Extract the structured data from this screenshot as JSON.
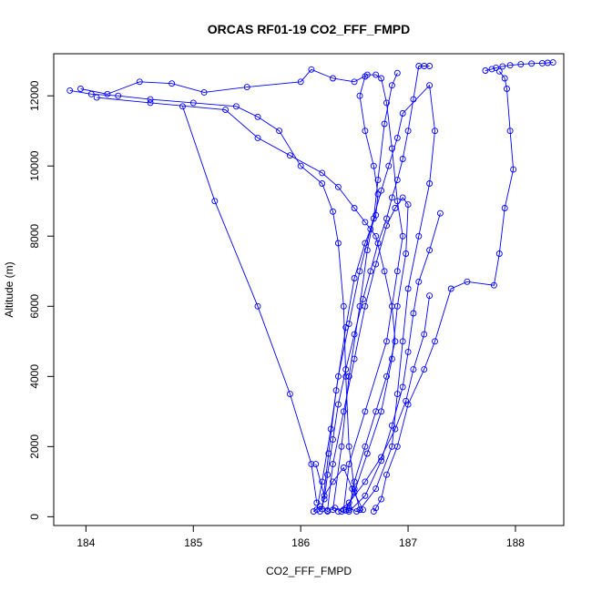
{
  "chart_data": {
    "type": "line",
    "title": "ORCAS RF01-19 CO2_FFF_FMPD",
    "xlabel": "CO2_FFF_FMPD",
    "ylabel": "Altitude (m)",
    "xlim": [
      183.7,
      188.45
    ],
    "ylim": [
      -250,
      13200
    ],
    "x_ticks": [
      184,
      185,
      186,
      187,
      188
    ],
    "y_ticks": [
      0,
      2000,
      4000,
      6000,
      8000,
      10000,
      12000
    ],
    "series_color": "#0000ff",
    "marker": "open-circle",
    "series": [
      {
        "values": [
          [
            186.18,
            150
          ],
          [
            186.22,
            500
          ],
          [
            186.25,
            1200
          ],
          [
            186.3,
            2200
          ],
          [
            186.35,
            3200
          ],
          [
            186.42,
            4200
          ],
          [
            186.5,
            5200
          ],
          [
            186.58,
            6200
          ],
          [
            186.65,
            7000
          ],
          [
            186.72,
            7800
          ],
          [
            186.8,
            8500
          ],
          [
            186.85,
            9100
          ],
          [
            186.9,
            9600
          ],
          [
            186.95,
            10200
          ],
          [
            187.0,
            11000
          ],
          [
            187.05,
            11900
          ],
          [
            187.1,
            12850
          ],
          [
            187.15,
            12850
          ],
          [
            187.2,
            12850
          ]
        ]
      },
      {
        "values": [
          [
            187.72,
            12720
          ],
          [
            187.78,
            12760
          ],
          [
            187.82,
            12800
          ],
          [
            187.88,
            12840
          ],
          [
            187.95,
            12870
          ],
          [
            188.05,
            12900
          ],
          [
            188.15,
            12920
          ],
          [
            188.25,
            12930
          ],
          [
            188.3,
            12940
          ],
          [
            188.35,
            12950
          ]
        ]
      },
      {
        "values": [
          [
            187.85,
            12700
          ],
          [
            187.9,
            12500
          ],
          [
            187.92,
            12200
          ],
          [
            187.95,
            11000
          ],
          [
            187.98,
            9900
          ],
          [
            187.9,
            8800
          ],
          [
            187.85,
            7500
          ],
          [
            187.8,
            6600
          ],
          [
            187.55,
            6700
          ],
          [
            187.4,
            6500
          ],
          [
            187.25,
            5000
          ],
          [
            187.15,
            4200
          ],
          [
            187.0,
            3200
          ],
          [
            186.9,
            2000
          ],
          [
            186.8,
            1200
          ],
          [
            186.75,
            500
          ],
          [
            186.7,
            250
          ],
          [
            186.68,
            150
          ]
        ]
      },
      {
        "values": [
          [
            183.85,
            12150
          ],
          [
            184.05,
            12050
          ],
          [
            184.3,
            12000
          ],
          [
            184.6,
            11900
          ],
          [
            185.0,
            11800
          ],
          [
            185.4,
            11700
          ],
          [
            185.6,
            11400
          ],
          [
            185.8,
            11000
          ],
          [
            186.0,
            10000
          ],
          [
            186.2,
            9500
          ],
          [
            186.3,
            8700
          ],
          [
            186.35,
            7800
          ],
          [
            186.4,
            6000
          ],
          [
            186.42,
            4000
          ],
          [
            186.45,
            2000
          ],
          [
            186.5,
            800
          ],
          [
            186.55,
            200
          ]
        ]
      },
      {
        "values": [
          [
            183.95,
            12200
          ],
          [
            184.2,
            12050
          ],
          [
            184.5,
            12400
          ],
          [
            184.8,
            12350
          ],
          [
            185.1,
            12100
          ],
          [
            185.5,
            12250
          ],
          [
            186.0,
            12400
          ],
          [
            186.1,
            12750
          ],
          [
            186.3,
            12500
          ],
          [
            186.5,
            12400
          ],
          [
            186.62,
            12600
          ],
          [
            186.7,
            12600
          ],
          [
            186.75,
            12500
          ],
          [
            186.8,
            11800
          ],
          [
            186.85,
            10500
          ],
          [
            186.9,
            9000
          ],
          [
            186.95,
            8000
          ],
          [
            186.9,
            7000
          ],
          [
            186.8,
            5000
          ],
          [
            186.6,
            3000
          ],
          [
            186.45,
            1500
          ],
          [
            186.4,
            200
          ]
        ]
      },
      {
        "values": [
          [
            184.9,
            11700
          ],
          [
            185.2,
            9000
          ],
          [
            185.6,
            6000
          ],
          [
            185.9,
            3500
          ],
          [
            186.1,
            1500
          ],
          [
            186.15,
            400
          ]
        ]
      },
      {
        "values": [
          [
            184.1,
            11950
          ],
          [
            184.6,
            11800
          ],
          [
            185.3,
            11600
          ],
          [
            185.6,
            10800
          ],
          [
            185.9,
            10300
          ],
          [
            186.2,
            9800
          ],
          [
            186.35,
            9400
          ],
          [
            186.5,
            8800
          ],
          [
            186.6,
            8400
          ],
          [
            186.7,
            8000
          ],
          [
            186.78,
            7000
          ],
          [
            186.85,
            6000
          ],
          [
            186.88,
            5000
          ],
          [
            186.8,
            4000
          ],
          [
            186.7,
            3000
          ],
          [
            186.6,
            2000
          ],
          [
            186.5,
            1000
          ],
          [
            186.45,
            200
          ]
        ]
      },
      {
        "values": [
          [
            186.15,
            200
          ],
          [
            186.2,
            1000
          ],
          [
            186.28,
            2500
          ],
          [
            186.35,
            4000
          ],
          [
            186.45,
            5500
          ],
          [
            186.55,
            7000
          ],
          [
            186.65,
            8200
          ],
          [
            186.75,
            9300
          ],
          [
            186.82,
            10000
          ],
          [
            186.9,
            10800
          ],
          [
            186.95,
            11500
          ],
          [
            187.2,
            12300
          ],
          [
            187.25,
            11000
          ],
          [
            187.2,
            9500
          ],
          [
            187.1,
            8000
          ],
          [
            187.0,
            6500
          ],
          [
            186.95,
            5000
          ],
          [
            186.9,
            3500
          ],
          [
            186.85,
            2000
          ],
          [
            186.7,
            800
          ],
          [
            186.55,
            200
          ]
        ]
      },
      {
        "values": [
          [
            186.25,
            180
          ],
          [
            186.3,
            1500
          ],
          [
            186.4,
            3000
          ],
          [
            186.5,
            4500
          ],
          [
            186.6,
            6000
          ],
          [
            186.7,
            7200
          ],
          [
            186.8,
            8300
          ],
          [
            186.88,
            8800
          ],
          [
            186.95,
            9100
          ],
          [
            187.0,
            8900
          ],
          [
            186.98,
            7500
          ],
          [
            186.9,
            6000
          ],
          [
            186.85,
            4500
          ],
          [
            186.75,
            3000
          ],
          [
            186.62,
            1800
          ],
          [
            186.5,
            700
          ],
          [
            186.42,
            180
          ]
        ]
      },
      {
        "values": [
          [
            186.2,
            220
          ],
          [
            186.26,
            1800
          ],
          [
            186.33,
            3600
          ],
          [
            186.42,
            5400
          ],
          [
            186.5,
            6800
          ],
          [
            186.6,
            7800
          ],
          [
            186.7,
            8600
          ],
          [
            186.72,
            9200
          ],
          [
            186.68,
            10000
          ],
          [
            186.6,
            11000
          ],
          [
            186.55,
            12000
          ],
          [
            186.6,
            12550
          ]
        ]
      },
      {
        "values": [
          [
            187.3,
            8650
          ],
          [
            187.2,
            7600
          ],
          [
            187.1,
            6700
          ],
          [
            187.05,
            5800
          ],
          [
            187.0,
            4700
          ],
          [
            186.95,
            3700
          ],
          [
            186.85,
            2600
          ],
          [
            186.75,
            1600
          ],
          [
            186.6,
            600
          ],
          [
            186.45,
            150
          ]
        ]
      },
      {
        "values": [
          [
            186.12,
            150
          ],
          [
            186.18,
            300
          ],
          [
            186.25,
            150
          ],
          [
            186.32,
            250
          ],
          [
            186.38,
            150
          ],
          [
            186.45,
            250
          ],
          [
            186.52,
            150
          ],
          [
            186.58,
            200
          ],
          [
            186.48,
            800
          ],
          [
            186.4,
            1400
          ],
          [
            186.3,
            1000
          ],
          [
            186.22,
            600
          ],
          [
            186.14,
            1500
          ]
        ]
      },
      {
        "values": [
          [
            187.2,
            6300
          ],
          [
            187.15,
            5200
          ],
          [
            187.05,
            4200
          ],
          [
            186.98,
            3300
          ],
          [
            186.88,
            2500
          ],
          [
            186.75,
            1700
          ],
          [
            186.6,
            1000
          ],
          [
            186.45,
            400
          ],
          [
            186.35,
            150
          ]
        ]
      },
      {
        "values": [
          [
            186.3,
            200
          ],
          [
            186.38,
            2000
          ],
          [
            186.45,
            4000
          ],
          [
            186.55,
            6000
          ],
          [
            186.62,
            7600
          ],
          [
            186.68,
            8500
          ],
          [
            186.72,
            9600
          ],
          [
            186.78,
            11200
          ],
          [
            186.85,
            12300
          ],
          [
            186.9,
            12650
          ]
        ]
      }
    ]
  }
}
